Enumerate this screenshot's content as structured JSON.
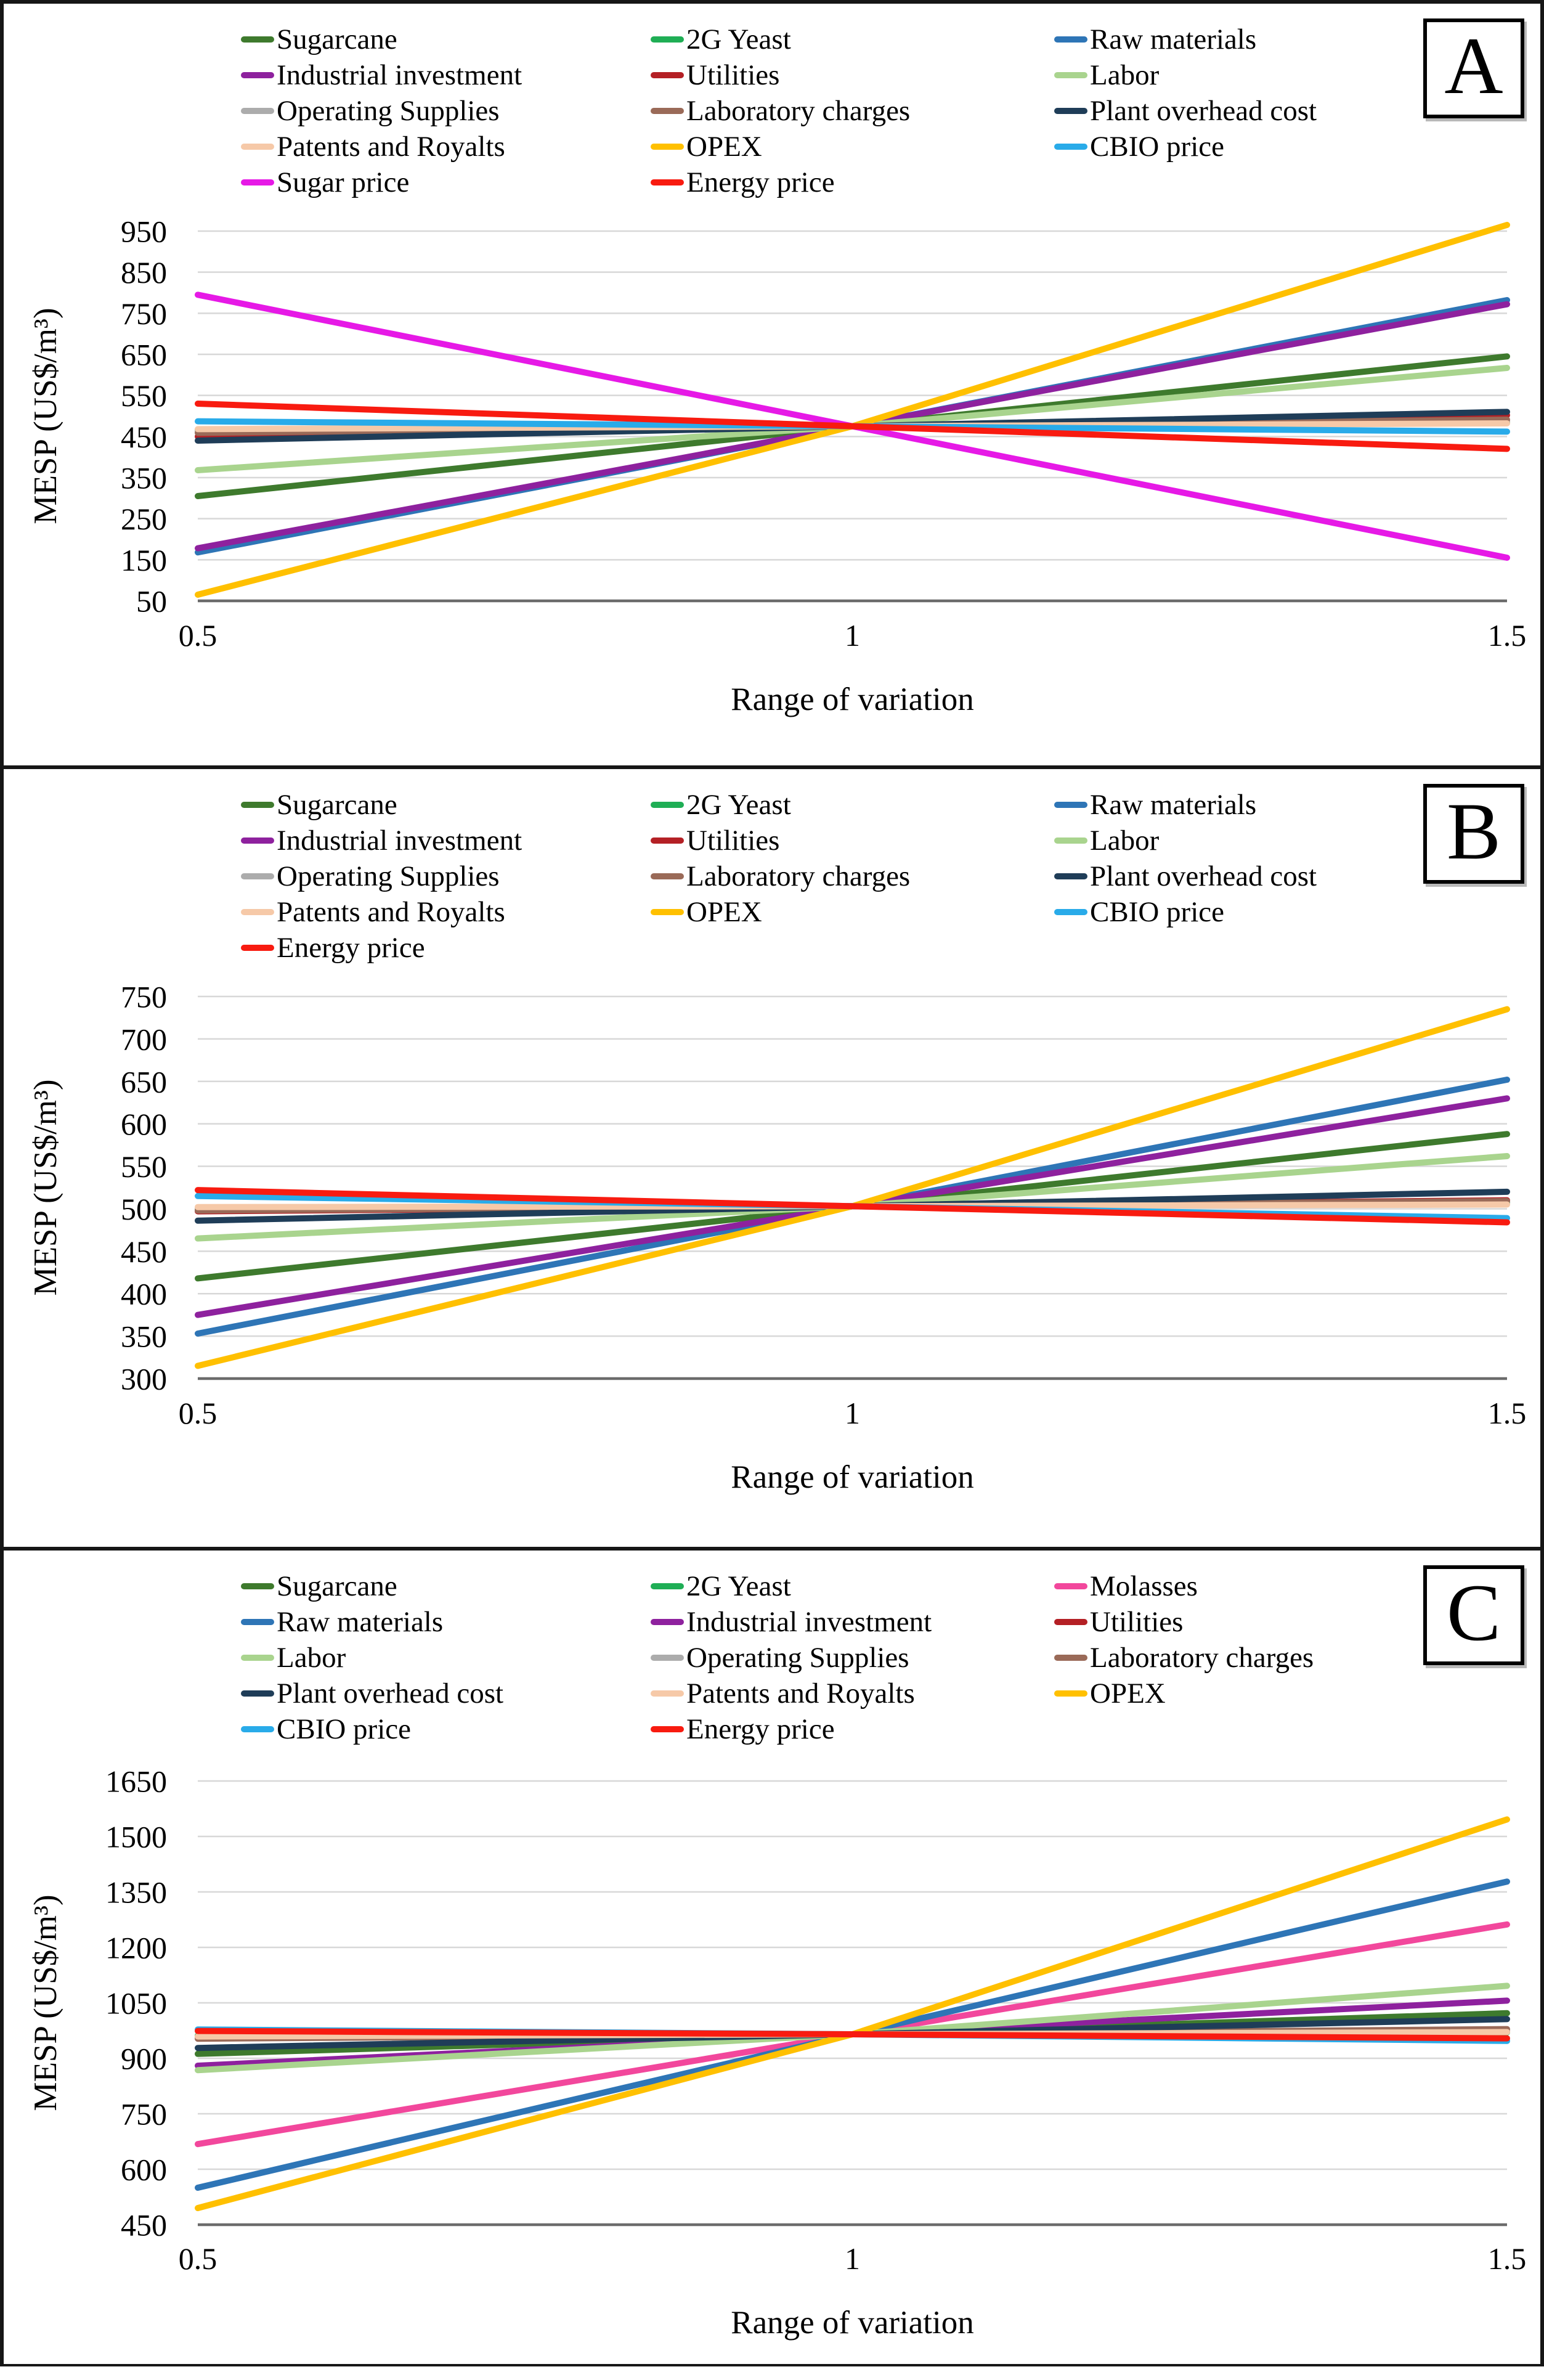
{
  "figure": {
    "description_visible_text_only": "Three stacked sensitivity line charts labeled A, B and C",
    "panel_labels": [
      "A",
      "B",
      "C"
    ]
  },
  "axes": {
    "xlabel": "Range of variation",
    "ylabel": "MESP (US$/m³)",
    "xtick_labels": [
      "0.5",
      "1",
      "1.5"
    ]
  },
  "chart_data": [
    {
      "panel_label": "A",
      "type": "line",
      "xlabel": "Range of variation",
      "ylabel": "MESP (US$/m³)",
      "x": [
        0.5,
        1,
        1.5
      ],
      "xtick_labels": [
        "0.5",
        "1",
        "1.5"
      ],
      "yticks": [
        50,
        150,
        250,
        350,
        450,
        550,
        650,
        750,
        850,
        950
      ],
      "ylim": [
        25,
        1005
      ],
      "grid": true,
      "legend_position": "top",
      "series": [
        {
          "name": "Sugarcane",
          "color": "#3E7A2D",
          "values": [
            305,
            475,
            645
          ]
        },
        {
          "name": "2G Yeast",
          "color": "#1FAE55",
          "values": [
            466,
            475,
            484
          ]
        },
        {
          "name": "Raw materials",
          "color": "#2E75B6",
          "values": [
            168,
            475,
            782
          ]
        },
        {
          "name": "Industrial investment",
          "color": "#8E219E",
          "values": [
            178,
            475,
            772
          ]
        },
        {
          "name": "Utilities",
          "color": "#B42025",
          "values": [
            450,
            475,
            502
          ]
        },
        {
          "name": "Labor",
          "color": "#A9D48E",
          "values": [
            368,
            475,
            617
          ]
        },
        {
          "name": "Operating Supplies",
          "color": "#ACACAC",
          "values": [
            463,
            475,
            487
          ]
        },
        {
          "name": "Laboratory charges",
          "color": "#9A6A58",
          "values": [
            459,
            475,
            491
          ]
        },
        {
          "name": "Plant overhead cost",
          "color": "#1F3D58",
          "values": [
            440,
            475,
            510
          ]
        },
        {
          "name": "Patents and Royalts",
          "color": "#F6C9A8",
          "values": [
            468,
            475,
            482
          ]
        },
        {
          "name": "OPEX",
          "color": "#FFC000",
          "values": [
            65,
            475,
            965
          ]
        },
        {
          "name": "CBIO price",
          "color": "#29ABE9",
          "values": [
            487,
            475,
            462
          ]
        },
        {
          "name": "Sugar price",
          "color": "#E619E6",
          "values": [
            795,
            475,
            155
          ]
        },
        {
          "name": "Energy price",
          "color": "#F81B10",
          "values": [
            530,
            475,
            420
          ]
        }
      ]
    },
    {
      "panel_label": "B",
      "type": "line",
      "xlabel": "Range of variation",
      "ylabel": "MESP (US$/m³)",
      "x": [
        0.5,
        1,
        1.5
      ],
      "xtick_labels": [
        "0.5",
        "1",
        "1.5"
      ],
      "yticks": [
        300,
        350,
        400,
        450,
        500,
        550,
        600,
        650,
        700,
        750
      ],
      "ylim": [
        285,
        765
      ],
      "grid": true,
      "legend_position": "top",
      "series": [
        {
          "name": "Sugarcane",
          "color": "#3E7A2D",
          "values": [
            418,
            503,
            588
          ]
        },
        {
          "name": "2G Yeast",
          "color": "#1FAE55",
          "values": [
            499,
            503,
            507
          ]
        },
        {
          "name": "Raw materials",
          "color": "#2E75B6",
          "values": [
            353,
            503,
            652
          ]
        },
        {
          "name": "Industrial investment",
          "color": "#8E219E",
          "values": [
            375,
            503,
            630
          ]
        },
        {
          "name": "Utilities",
          "color": "#B42025",
          "values": [
            497,
            503,
            510
          ]
        },
        {
          "name": "Labor",
          "color": "#A9D48E",
          "values": [
            465,
            503,
            562
          ]
        },
        {
          "name": "Operating Supplies",
          "color": "#ACACAC",
          "values": [
            500,
            503,
            506
          ]
        },
        {
          "name": "Laboratory charges",
          "color": "#9A6A58",
          "values": [
            498,
            503,
            509
          ]
        },
        {
          "name": "Plant overhead cost",
          "color": "#1F3D58",
          "values": [
            486,
            503,
            520
          ]
        },
        {
          "name": "Patents and Royalts",
          "color": "#F6C9A8",
          "values": [
            502,
            503,
            505
          ]
        },
        {
          "name": "OPEX",
          "color": "#FFC000",
          "values": [
            315,
            503,
            735
          ]
        },
        {
          "name": "CBIO price",
          "color": "#29ABE9",
          "values": [
            515,
            503,
            489
          ]
        },
        {
          "name": "Energy price",
          "color": "#F81B10",
          "values": [
            522,
            503,
            484
          ]
        }
      ]
    },
    {
      "panel_label": "C",
      "type": "line",
      "xlabel": "Range of variation",
      "ylabel": "MESP (US$/m³)",
      "x": [
        0.5,
        1,
        1.5
      ],
      "xtick_labels": [
        "0.5",
        "1",
        "1.5"
      ],
      "yticks": [
        450,
        600,
        750,
        900,
        1050,
        1200,
        1350,
        1500,
        1650
      ],
      "ylim": [
        420,
        1690
      ],
      "grid": true,
      "legend_position": "top",
      "series": [
        {
          "name": "Sugarcane",
          "color": "#3E7A2D",
          "values": [
            912,
            965,
            1022
          ]
        },
        {
          "name": "2G Yeast",
          "color": "#1FAE55",
          "values": [
            961,
            965,
            970
          ]
        },
        {
          "name": "Molasses",
          "color": "#F2479C",
          "values": [
            668,
            965,
            1262
          ]
        },
        {
          "name": "Raw materials",
          "color": "#2E75B6",
          "values": [
            550,
            965,
            1378
          ]
        },
        {
          "name": "Industrial investment",
          "color": "#8E219E",
          "values": [
            880,
            965,
            1056
          ]
        },
        {
          "name": "Utilities",
          "color": "#B42025",
          "values": [
            958,
            965,
            973
          ]
        },
        {
          "name": "Labor",
          "color": "#A9D48E",
          "values": [
            868,
            965,
            1096
          ]
        },
        {
          "name": "Operating Supplies",
          "color": "#ACACAC",
          "values": [
            956,
            965,
            976
          ]
        },
        {
          "name": "Laboratory charges",
          "color": "#9A6A58",
          "values": [
            953,
            965,
            979
          ]
        },
        {
          "name": "Plant overhead cost",
          "color": "#1F3D58",
          "values": [
            928,
            965,
            1006
          ]
        },
        {
          "name": "Patents and Royalts",
          "color": "#F6C9A8",
          "values": [
            959,
            965,
            971
          ]
        },
        {
          "name": "OPEX",
          "color": "#FFC000",
          "values": [
            495,
            965,
            1546
          ]
        },
        {
          "name": "CBIO price",
          "color": "#29ABE9",
          "values": [
            978,
            965,
            947
          ]
        },
        {
          "name": "Energy price",
          "color": "#F81B10",
          "values": [
            974,
            965,
            954
          ]
        }
      ]
    }
  ],
  "style": {
    "gridline_color": "#D8D8D8",
    "axis_line_color": "#6B6B6B",
    "text_color": "#000000",
    "border_color": "#161616",
    "background": "#FFFFFF"
  }
}
